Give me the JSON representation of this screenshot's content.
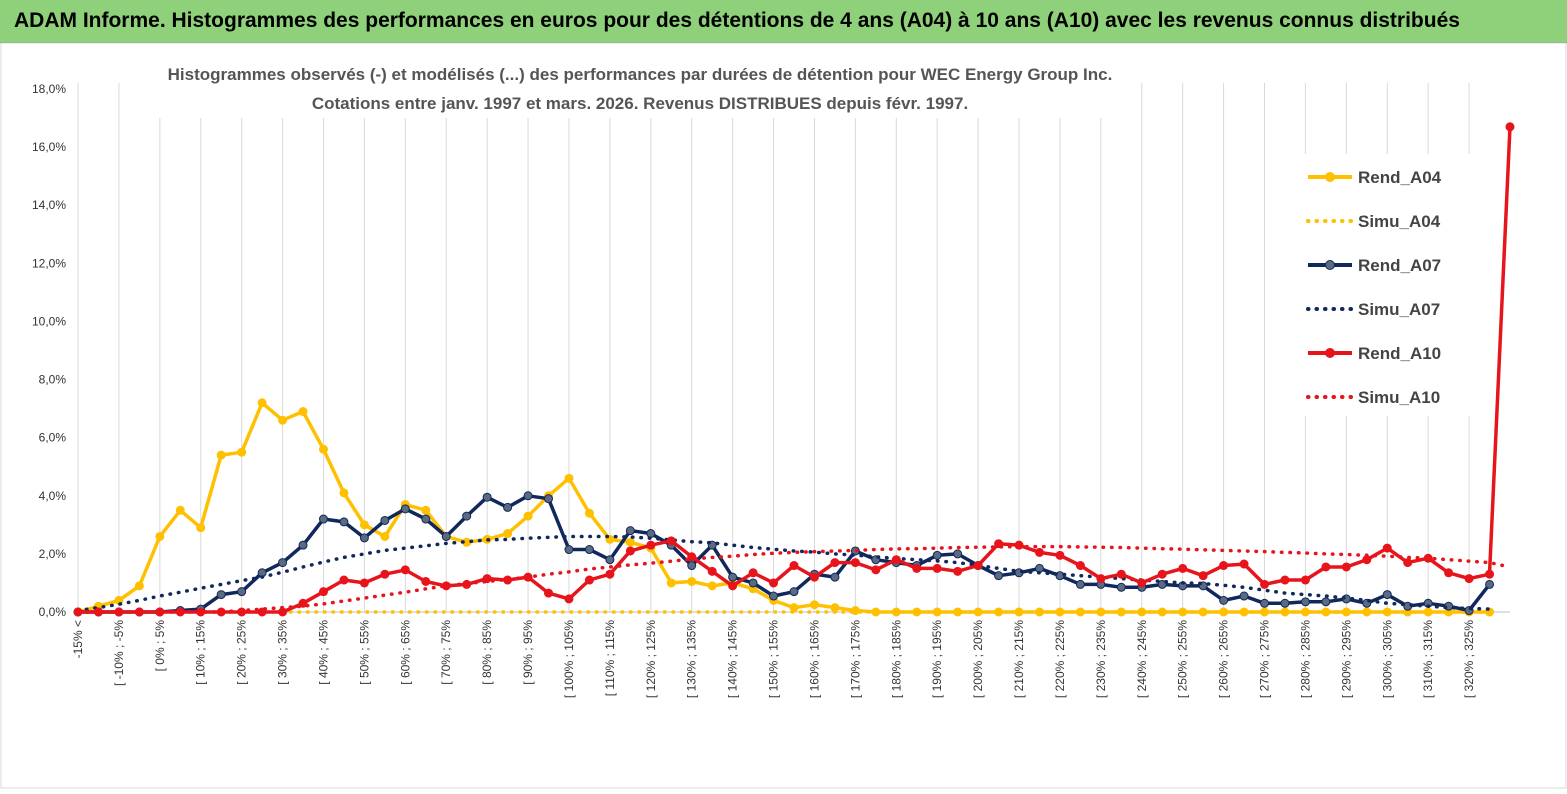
{
  "banner": {
    "title": "ADAM Informe. Histogrammes des performances en euros pour des détentions de 4 ans (A04) à 10 ans (A10) avec les revenus connus distribués"
  },
  "chart_data": {
    "type": "line",
    "title": "Histogrammes observés (-) et modélisés (...) des performances par durées de détention pour WEC Energy Group Inc.",
    "subtitle": "Cotations entre janv. 1997 et mars. 2026. Revenus DISTRIBUES depuis févr. 1997.",
    "xlabel": "",
    "ylabel": "",
    "ylim": [
      0,
      18
    ],
    "y_ticks": [
      "0,0%",
      "2,0%",
      "4,0%",
      "6,0%",
      "8,0%",
      "10,0%",
      "12,0%",
      "14,0%",
      "16,0%",
      "18,0%"
    ],
    "grid": "vertical",
    "legend_position": "right",
    "x_labels": [
      "-15% <",
      "[ -10% ; -5%",
      "[ 0% ; 5%",
      "[ 10% ; 15%",
      "[ 20% ; 25%",
      "[ 30% ; 35%",
      "[ 40% ; 45%",
      "[ 50% ; 55%",
      "[ 60% ; 65%",
      "[ 70% ; 75%",
      "[ 80% ; 85%",
      "[ 90% ; 95%",
      "[ 100% ; 105%",
      "[ 110% ; 115%",
      "[ 120% ; 125%",
      "[ 130% ; 135%",
      "[ 140% ; 145%",
      "[ 150% ; 155%",
      "[ 160% ; 165%",
      "[ 170% ; 175%",
      "[ 180% ; 185%",
      "[ 190% ; 195%",
      "[ 200% ; 205%",
      "[ 210% ; 215%",
      "[ 220% ; 225%",
      "[ 230% ; 235%",
      "[ 240% ; 245%",
      "[ 250% ; 255%",
      "[ 260% ; 265%",
      "[ 270% ; 275%",
      "[ 280% ; 285%",
      "[ 290% ; 295%",
      "[ 300% ; 305%",
      "[ 310% ; 315%",
      "[ 320% ; 325%"
    ],
    "series": [
      {
        "name": "Rend_A04",
        "style": "solid",
        "color": "#ffc000",
        "values": [
          0.0,
          0.2,
          0.4,
          0.9,
          2.6,
          3.5,
          2.9,
          5.4,
          5.5,
          7.2,
          6.6,
          6.9,
          5.6,
          4.1,
          3.0,
          2.6,
          3.7,
          3.5,
          2.6,
          2.4,
          2.5,
          2.7,
          3.3,
          4.0,
          4.6,
          3.4,
          2.5,
          2.4,
          2.2,
          1.0,
          1.05,
          0.9,
          1.0,
          0.8,
          0.4,
          0.15,
          0.25,
          0.15,
          0.05,
          0.0,
          0.0,
          0.0,
          0.0,
          0.0,
          0.0,
          0.0,
          0.0,
          0.0,
          0.0,
          0.0,
          0.0,
          0.0,
          0.0,
          0.0,
          0.0,
          0.0,
          0.0,
          0.0,
          0.0,
          0.0,
          0.0,
          0.0,
          0.0,
          0.0,
          0.0,
          0.0,
          0.0,
          0.0,
          0.0,
          0.0
        ]
      },
      {
        "name": "Simu_A04",
        "style": "dotted",
        "color": "#ffc000",
        "values": [
          0.0,
          0.0,
          0.0,
          0.0,
          0.0,
          0.0,
          0.0,
          0.0,
          0.0,
          0.0,
          0.0,
          0.0,
          0.0,
          0.0,
          0.0,
          0.0,
          0.0,
          0.0,
          0.0,
          0.0,
          0.0,
          0.0,
          0.0,
          0.0,
          0.0,
          0.0,
          0.0,
          0.0,
          0.0,
          0.0,
          0.0,
          0.0,
          0.0,
          0.0,
          0.0,
          0.0,
          0.0,
          0.0,
          0.0,
          0.0,
          0.0,
          0.0,
          0.0,
          0.0,
          0.0,
          0.0,
          0.0,
          0.0,
          0.0,
          0.0,
          0.0,
          0.0,
          0.0,
          0.0,
          0.0,
          0.0,
          0.0,
          0.0,
          0.0,
          0.0,
          0.0,
          0.0,
          0.0,
          0.0,
          0.0,
          0.0,
          0.0,
          0.0,
          0.0,
          0.0
        ]
      },
      {
        "name": "Rend_A07",
        "style": "solid",
        "color": "#10285c",
        "values": [
          0.0,
          0.0,
          0.0,
          0.0,
          0.0,
          0.05,
          0.1,
          0.6,
          0.7,
          1.35,
          1.7,
          2.3,
          3.2,
          3.1,
          2.55,
          3.15,
          3.55,
          3.2,
          2.6,
          3.3,
          3.95,
          3.6,
          4.0,
          3.9,
          2.15,
          2.15,
          1.8,
          2.8,
          2.7,
          2.3,
          1.6,
          2.3,
          1.2,
          1.0,
          0.55,
          0.7,
          1.3,
          1.2,
          2.1,
          1.8,
          1.7,
          1.6,
          1.95,
          2.0,
          1.6,
          1.25,
          1.35,
          1.5,
          1.25,
          0.95,
          0.95,
          0.85,
          0.85,
          0.95,
          0.9,
          0.9,
          0.4,
          0.55,
          0.3,
          0.3,
          0.35,
          0.35,
          0.45,
          0.3,
          0.6,
          0.2,
          0.3,
          0.2,
          0.05,
          0.95
        ]
      },
      {
        "name": "Simu_A07",
        "style": "dotted",
        "color": "#10285c",
        "values": [
          0.05,
          0.15,
          0.27,
          0.4,
          0.55,
          0.68,
          0.82,
          0.95,
          1.08,
          1.2,
          1.37,
          1.55,
          1.72,
          1.88,
          2.0,
          2.12,
          2.2,
          2.28,
          2.36,
          2.42,
          2.48,
          2.5,
          2.54,
          2.57,
          2.6,
          2.6,
          2.6,
          2.58,
          2.54,
          2.48,
          2.42,
          2.38,
          2.3,
          2.22,
          2.16,
          2.1,
          2.06,
          2.0,
          1.96,
          1.9,
          1.84,
          1.8,
          1.76,
          1.7,
          1.6,
          1.5,
          1.4,
          1.35,
          1.3,
          1.25,
          1.2,
          1.15,
          1.1,
          1.05,
          1.0,
          0.98,
          0.92,
          0.85,
          0.75,
          0.65,
          0.6,
          0.55,
          0.48,
          0.4,
          0.3,
          0.25,
          0.2,
          0.15,
          0.12,
          0.1
        ]
      },
      {
        "name": "Rend_A10",
        "style": "solid",
        "color": "#e8141c",
        "values": [
          0.0,
          0.0,
          0.0,
          0.0,
          0.0,
          0.0,
          0.0,
          0.0,
          0.0,
          0.0,
          0.0,
          0.3,
          0.7,
          1.1,
          1.0,
          1.3,
          1.45,
          1.05,
          0.9,
          0.95,
          1.15,
          1.1,
          1.2,
          0.65,
          0.45,
          1.1,
          1.3,
          2.1,
          2.3,
          2.45,
          1.9,
          1.4,
          0.9,
          1.35,
          1.0,
          1.6,
          1.2,
          1.7,
          1.7,
          1.45,
          1.8,
          1.5,
          1.5,
          1.4,
          1.6,
          2.35,
          2.3,
          2.05,
          1.95,
          1.6,
          1.15,
          1.3,
          1.0,
          1.3,
          1.5,
          1.25,
          1.6,
          1.65,
          0.95,
          1.1,
          1.1,
          1.55,
          1.55,
          1.8,
          2.2,
          1.7,
          1.85,
          1.35,
          1.15,
          1.3,
          16.7
        ]
      },
      {
        "name": "Simu_A10",
        "style": "dotted",
        "color": "#e8141c",
        "values": [
          0.0,
          0.0,
          0.0,
          0.0,
          0.0,
          0.0,
          0.0,
          0.0,
          0.05,
          0.1,
          0.15,
          0.2,
          0.28,
          0.38,
          0.48,
          0.58,
          0.68,
          0.8,
          0.9,
          0.98,
          1.05,
          1.12,
          1.2,
          1.3,
          1.38,
          1.48,
          1.55,
          1.62,
          1.68,
          1.75,
          1.82,
          1.88,
          1.92,
          1.98,
          2.02,
          2.05,
          2.08,
          2.1,
          2.12,
          2.15,
          2.17,
          2.18,
          2.2,
          2.22,
          2.23,
          2.24,
          2.25,
          2.25,
          2.25,
          2.24,
          2.23,
          2.22,
          2.2,
          2.18,
          2.16,
          2.14,
          2.12,
          2.1,
          2.08,
          2.05,
          2.03,
          2.0,
          1.98,
          1.95,
          1.92,
          1.88,
          1.85,
          1.8,
          1.75,
          1.7,
          1.55
        ]
      }
    ]
  }
}
